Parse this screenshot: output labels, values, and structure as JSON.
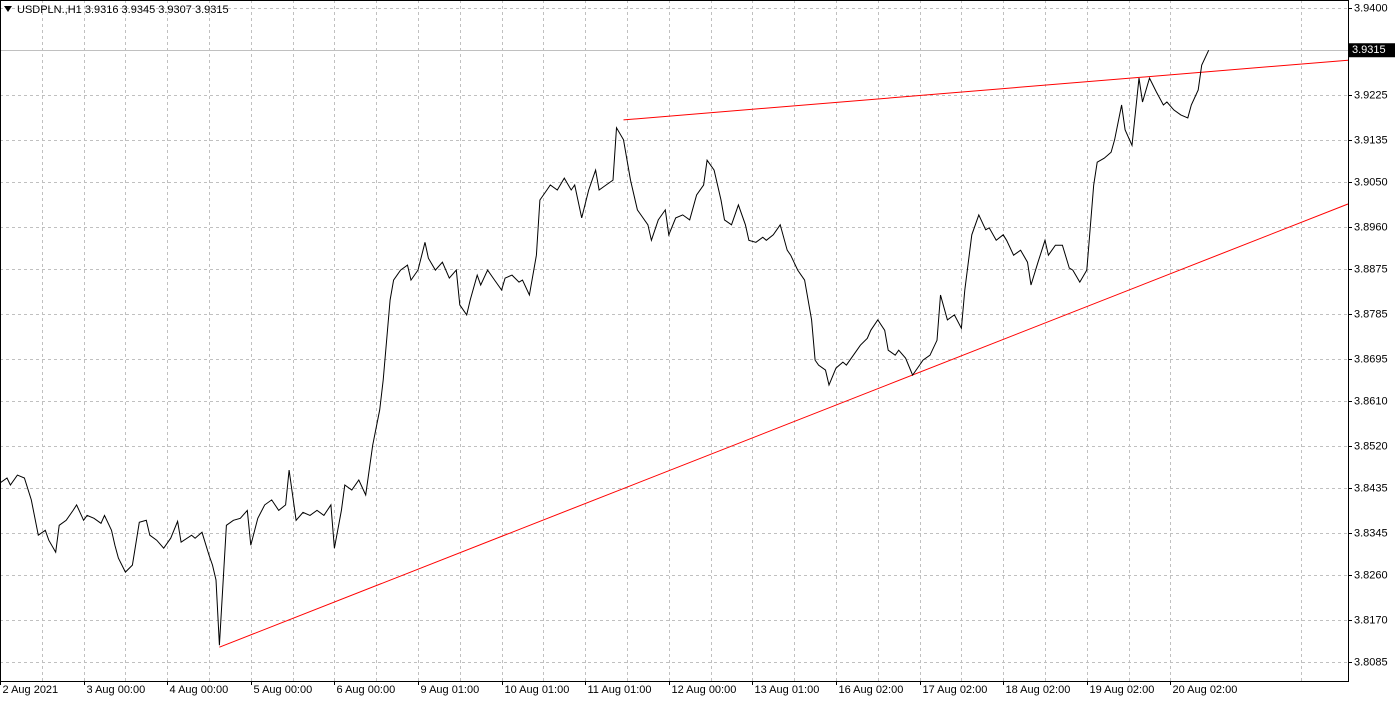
{
  "chart_data": {
    "type": "line",
    "title": "USDPLN.,H1  3.9316 3.9345 3.9307 3.9315",
    "color": "#000000",
    "x": [
      0,
      2,
      3,
      5,
      7,
      9,
      11,
      13,
      14,
      16,
      17,
      19,
      21,
      22,
      24,
      25,
      27,
      29,
      30,
      32,
      33,
      34,
      36,
      38,
      40,
      42,
      43,
      45,
      47,
      49,
      51,
      52,
      55,
      56,
      58,
      60,
      61,
      62,
      63,
      65,
      67,
      69,
      71,
      72,
      74,
      76,
      78,
      80,
      82,
      83,
      85,
      87,
      89,
      91,
      93,
      95,
      96,
      98,
      99,
      101,
      103,
      105,
      107,
      109,
      110,
      112,
      113,
      115,
      117,
      118,
      120,
      122,
      123,
      125,
      127,
      129,
      131,
      132,
      134,
      135,
      137,
      138,
      140,
      142,
      144,
      145,
      147,
      149,
      150,
      152,
      154,
      155,
      157,
      158,
      160,
      162,
      164,
      165,
      167,
      169,
      171,
      172,
      174,
      176,
      177,
      179,
      181,
      183,
      184,
      186,
      187,
      189,
      191,
      192,
      194,
      196,
      198,
      200,
      202,
      203,
      205,
      207,
      208,
      210,
      212,
      214,
      215,
      217,
      219,
      220,
      222,
      224,
      226,
      227,
      229,
      231,
      233,
      234,
      235,
      237,
      238,
      240,
      242,
      243,
      245,
      247,
      249,
      250,
      252,
      254,
      255,
      257,
      258,
      260,
      262,
      264,
      265,
      267,
      269,
      270,
      272,
      274,
      276,
      277,
      279,
      281,
      283,
      284,
      286,
      288,
      289,
      291,
      293,
      295,
      296,
      298,
      300,
      301,
      303,
      305,
      307,
      308,
      310,
      312,
      314,
      315,
      317,
      319,
      320,
      322,
      323,
      325,
      327,
      328,
      330,
      332,
      334,
      335,
      337,
      339,
      341,
      342,
      344,
      345,
      347
    ],
    "values": [
      3.8445,
      3.8455,
      3.8441,
      3.8461,
      3.8455,
      3.8411,
      3.834,
      3.835,
      3.833,
      3.8306,
      3.836,
      3.837,
      3.839,
      3.8401,
      3.837,
      3.838,
      3.8374,
      3.8364,
      3.838,
      3.835,
      3.832,
      3.8294,
      3.8266,
      3.828,
      3.8366,
      3.837,
      3.834,
      3.833,
      3.8314,
      3.8334,
      3.8368,
      3.8326,
      3.834,
      3.8334,
      3.8346,
      3.83,
      3.828,
      3.825,
      3.8119,
      3.836,
      3.837,
      3.8374,
      3.839,
      3.832,
      3.8374,
      3.8401,
      3.8411,
      3.839,
      3.8401,
      3.8471,
      3.837,
      3.8386,
      3.838,
      3.839,
      3.838,
      3.8401,
      3.8314,
      3.839,
      3.8441,
      3.8431,
      3.8451,
      3.8421,
      3.8521,
      3.8592,
      3.8652,
      3.8813,
      3.8853,
      3.8873,
      3.8883,
      3.8853,
      3.8873,
      3.8929,
      3.8897,
      3.8873,
      3.8889,
      3.8857,
      3.8873,
      3.8803,
      3.8783,
      3.8813,
      3.8863,
      3.8843,
      3.8873,
      3.8853,
      3.8833,
      3.8857,
      3.8863,
      3.8849,
      3.8853,
      3.8823,
      3.8903,
      3.9014,
      3.9034,
      3.9044,
      3.9034,
      3.9058,
      3.9034,
      3.9044,
      3.8978,
      3.9034,
      3.9074,
      3.9034,
      3.9044,
      3.9054,
      3.9159,
      3.9135,
      3.9054,
      3.8994,
      3.8984,
      3.8964,
      3.8933,
      3.8974,
      3.8994,
      3.8944,
      3.8978,
      3.8984,
      3.8974,
      3.9024,
      3.9044,
      3.9094,
      3.9074,
      3.9014,
      3.8974,
      3.8964,
      3.9004,
      3.8964,
      3.8933,
      3.8929,
      3.8939,
      3.8933,
      3.8944,
      3.8964,
      3.8913,
      3.8903,
      3.8873,
      3.8853,
      3.8773,
      3.8692,
      3.8682,
      3.8672,
      3.8642,
      3.8676,
      3.8688,
      3.8682,
      3.8702,
      3.8722,
      3.8736,
      3.8752,
      3.8773,
      3.8752,
      3.8712,
      3.8702,
      3.8712,
      3.8696,
      3.8662,
      3.8682,
      3.8692,
      3.8702,
      3.8732,
      3.8823,
      3.8773,
      3.8783,
      3.8756,
      3.8833,
      3.8944,
      3.8984,
      3.8954,
      3.8958,
      3.8933,
      3.8944,
      3.8933,
      3.8903,
      3.8913,
      3.8889,
      3.8843,
      3.8889,
      3.8933,
      3.8903,
      3.8923,
      3.8923,
      3.8877,
      3.8873,
      3.8849,
      3.8873,
      3.9044,
      3.909,
      3.9098,
      3.911,
      3.9135,
      3.9205,
      3.9155,
      3.9124,
      3.9259,
      3.9211,
      3.9259,
      3.9231,
      3.9205,
      3.9211,
      3.9195,
      3.9185,
      3.9179,
      3.9205,
      3.9235,
      3.9285,
      3.9315
    ],
    "trendlines": [
      {
        "color": "#ff0000",
        "x": [
          63,
          387
        ],
        "values": [
          3.8115,
          3.9006
        ]
      },
      {
        "color": "#ff0000",
        "x": [
          179,
          387
        ],
        "values": [
          3.9175,
          3.9295
        ]
      }
    ],
    "last_price": 3.9315,
    "xlim": [
      0,
      387
    ],
    "xticks": [
      {
        "value": 0,
        "label": "2 Aug 2021"
      },
      {
        "value": 24,
        "label": "3 Aug 00:00"
      },
      {
        "value": 48,
        "label": "4 Aug 00:00"
      },
      {
        "value": 72,
        "label": "5 Aug 00:00"
      },
      {
        "value": 96,
        "label": "6 Aug 00:00"
      },
      {
        "value": 120,
        "label": "9 Aug 01:00"
      },
      {
        "value": 144,
        "label": "10 Aug 01:00"
      },
      {
        "value": 168,
        "label": "11 Aug 01:00"
      },
      {
        "value": 192,
        "label": "12 Aug 00:00"
      },
      {
        "value": 216,
        "label": "13 Aug 01:00"
      },
      {
        "value": 240,
        "label": "16 Aug 02:00"
      },
      {
        "value": 264,
        "label": "17 Aug 02:00"
      },
      {
        "value": 288,
        "label": "18 Aug 02:00"
      },
      {
        "value": 312,
        "label": "19 Aug 02:00"
      },
      {
        "value": 336,
        "label": "20 Aug 02:00"
      }
    ],
    "ylim": [
      3.8047,
      3.9416
    ],
    "yticks": [
      {
        "value": 3.94,
        "label": "3.9400"
      },
      3.9225,
      3.9135,
      {
        "value": 3.905,
        "label": "3.9050"
      },
      {
        "value": 3.896,
        "label": "3.8960"
      },
      3.8875,
      3.8785,
      3.8695,
      {
        "value": 3.861,
        "label": "3.8610"
      },
      {
        "value": 3.852,
        "label": "3.8520"
      },
      3.8435,
      3.8345,
      {
        "value": 3.826,
        "label": "3.8260"
      },
      {
        "value": 3.817,
        "label": "3.8170"
      },
      3.8085
    ],
    "grid": true
  }
}
